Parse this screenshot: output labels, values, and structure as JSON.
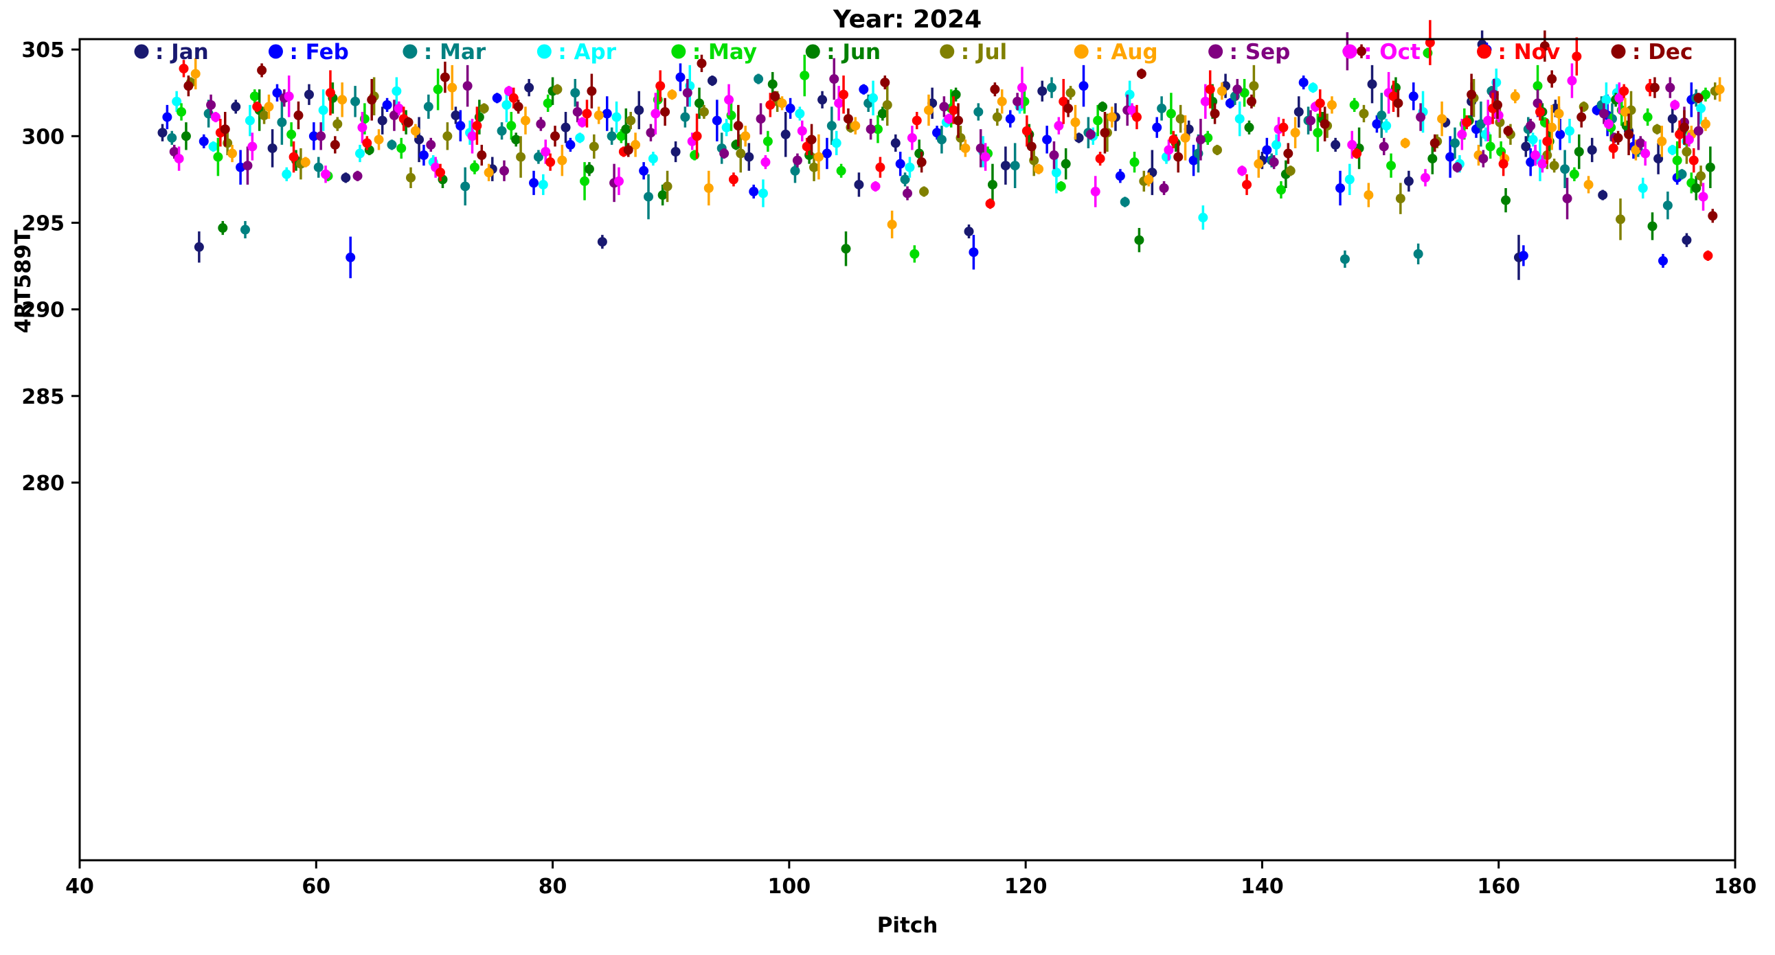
{
  "chart_data": {
    "type": "scatter",
    "title": "Year: 2024",
    "xlabel": "Pitch",
    "ylabel": "4RT589T",
    "xlim": [
      40,
      180
    ],
    "ylim": [
      258.2,
      305.6
    ],
    "xticks": [
      40,
      60,
      80,
      100,
      120,
      140,
      160,
      180
    ],
    "yticks": [
      280,
      285,
      290,
      295,
      300,
      305
    ],
    "grid": false,
    "background": "#ffffff",
    "axis_color": "#000000",
    "legend_position": "top-inline-row",
    "legend_label_prefix": ": ",
    "marker": "circle-with-vertical-errorbar",
    "x_base": [
      47.0,
      50.1,
      53.2,
      56.3,
      59.4,
      62.5,
      65.6,
      68.7,
      71.8,
      74.9,
      78.0,
      81.1,
      84.2,
      87.3,
      90.4,
      93.5,
      96.6,
      99.7,
      102.8,
      105.9,
      109.0,
      112.1,
      115.2,
      118.3,
      121.4,
      124.5,
      127.6,
      130.7,
      133.8,
      136.9,
      140.0,
      143.1,
      146.2,
      149.3,
      152.4,
      155.5,
      158.6,
      161.7,
      164.8,
      167.9,
      171.0,
      173.5,
      175.9,
      157.7,
      162.3,
      168.8,
      174.7
    ],
    "series": [
      {
        "name": "Jan",
        "color": "#191970",
        "x_offset": 0.0,
        "y": [
          300.2,
          293.6,
          301.7,
          299.3,
          302.4,
          297.6,
          300.9,
          299.8,
          301.2,
          298.1,
          302.8,
          300.5,
          293.9,
          301.5,
          299.1,
          303.2,
          298.8,
          300.1,
          302.1,
          297.2,
          299.6,
          301.9,
          294.5,
          298.3,
          302.6,
          299.9,
          301.1,
          297.9,
          300.4,
          302.9,
          298.6,
          301.4,
          299.5,
          303.0,
          297.4,
          300.8,
          305.3,
          293.0,
          301.6,
          299.2,
          300.3,
          298.7,
          294.0,
          302.0,
          299.4,
          296.6,
          301.0
        ],
        "err_cycle": [
          0.5,
          0.9,
          0.4,
          1.1,
          0.6,
          0.3,
          0.8,
          1.3,
          0.5,
          0.7
        ]
      },
      {
        "name": "Feb",
        "color": "#0000ff",
        "x_offset": 0.4,
        "y": [
          301.1,
          299.7,
          298.2,
          302.5,
          300.0,
          293.0,
          301.8,
          298.9,
          300.6,
          302.2,
          297.3,
          299.5,
          301.3,
          298.0,
          303.4,
          300.9,
          296.8,
          301.6,
          299.0,
          302.7,
          298.4,
          300.2,
          293.3,
          301.0,
          299.8,
          302.9,
          297.7,
          300.5,
          298.6,
          301.9,
          299.2,
          303.1,
          297.0,
          300.7,
          302.3,
          298.8,
          305.0,
          293.1,
          300.1,
          301.5,
          299.4,
          292.8,
          302.1,
          300.4,
          298.5,
          301.2,
          297.6
        ],
        "err_cycle": [
          0.7,
          0.4,
          1.0,
          0.5,
          0.8,
          1.2,
          0.4,
          0.6,
          0.9,
          0.3
        ]
      },
      {
        "name": "Mar",
        "color": "#008080",
        "x_offset": 0.8,
        "y": [
          299.9,
          301.3,
          294.6,
          300.8,
          298.2,
          302.0,
          299.5,
          301.7,
          297.1,
          300.3,
          298.8,
          302.5,
          300.0,
          296.5,
          301.1,
          299.3,
          303.3,
          298.0,
          300.6,
          301.9,
          297.5,
          299.8,
          301.4,
          298.3,
          302.8,
          300.2,
          296.2,
          301.6,
          299.0,
          302.3,
          298.6,
          300.9,
          292.9,
          301.2,
          293.2,
          299.6,
          302.6,
          300.4,
          298.1,
          301.8,
          299.2,
          296.0,
          302.2,
          300.7,
          298.9,
          301.0,
          297.8
        ],
        "err_cycle": [
          0.4,
          0.8,
          0.5,
          1.3,
          0.6,
          0.9,
          0.3,
          0.7,
          1.1,
          0.5
        ]
      },
      {
        "name": "Apr",
        "color": "#00ffff",
        "x_offset": 1.2,
        "y": [
          302.0,
          299.4,
          300.9,
          297.8,
          301.5,
          299.0,
          302.6,
          298.5,
          300.2,
          301.8,
          297.2,
          299.9,
          301.1,
          298.7,
          302.9,
          300.5,
          296.7,
          301.3,
          299.6,
          302.2,
          298.2,
          300.8,
          299.1,
          301.7,
          297.9,
          300.0,
          302.4,
          298.8,
          295.3,
          301.0,
          299.5,
          302.8,
          297.5,
          300.6,
          301.4,
          298.4,
          303.1,
          299.8,
          300.3,
          302.1,
          297.0,
          299.2,
          301.6,
          300.1,
          298.6,
          302.5,
          299.7
        ],
        "err_cycle": [
          0.6,
          0.3,
          0.9,
          0.4,
          1.2,
          0.5,
          0.8,
          0.4,
          0.7,
          1.0
        ]
      },
      {
        "name": "May",
        "color": "#00dd00",
        "x_offset": 1.6,
        "y": [
          301.4,
          298.8,
          302.3,
          300.1,
          297.7,
          301.0,
          299.3,
          302.7,
          298.2,
          300.6,
          301.9,
          297.4,
          300.0,
          302.1,
          298.9,
          301.2,
          299.7,
          303.5,
          298.0,
          300.4,
          293.2,
          301.6,
          299.0,
          302.0,
          297.1,
          300.9,
          298.5,
          301.3,
          299.9,
          302.5,
          296.9,
          300.2,
          301.8,
          298.3,
          304.8,
          300.7,
          299.1,
          302.9,
          297.8,
          300.5,
          301.1,
          298.6,
          302.4,
          299.4,
          300.8,
          301.5,
          297.3
        ],
        "err_cycle": [
          0.5,
          1.1,
          0.4,
          0.7,
          0.3,
          0.9,
          0.6,
          1.2,
          0.4,
          0.8
        ]
      },
      {
        "name": "Jun",
        "color": "#008000",
        "x_offset": 2.0,
        "y": [
          300.0,
          294.7,
          301.5,
          298.6,
          302.2,
          299.2,
          300.8,
          297.5,
          301.1,
          299.8,
          302.6,
          298.1,
          300.4,
          296.6,
          301.9,
          299.5,
          303.0,
          298.9,
          293.5,
          301.3,
          299.0,
          302.4,
          297.2,
          300.1,
          298.4,
          301.7,
          294.0,
          299.6,
          302.0,
          300.5,
          297.8,
          301.0,
          299.3,
          302.8,
          298.7,
          300.9,
          296.3,
          301.4,
          299.1,
          302.1,
          294.8,
          300.3,
          298.2,
          301.6,
          299.7,
          300.6,
          297.0
        ],
        "err_cycle": [
          0.8,
          0.4,
          1.2,
          0.6,
          0.9,
          0.3,
          0.7,
          0.5,
          1.0,
          0.4
        ]
      },
      {
        "name": "Jul",
        "color": "#808000",
        "x_offset": 2.4,
        "y": [
          303.1,
          299.6,
          301.2,
          298.4,
          300.7,
          302.3,
          297.6,
          300.0,
          301.6,
          298.8,
          302.7,
          299.4,
          300.9,
          297.1,
          301.4,
          299.0,
          302.0,
          298.2,
          300.5,
          301.8,
          296.8,
          299.9,
          301.1,
          298.6,
          302.5,
          300.2,
          297.4,
          301.0,
          299.2,
          302.9,
          298.0,
          300.6,
          301.3,
          296.4,
          299.7,
          302.2,
          300.1,
          298.9,
          301.7,
          295.2,
          300.4,
          299.1,
          302.6,
          300.8,
          298.3,
          301.5,
          297.7
        ],
        "err_cycle": [
          0.3,
          0.7,
          0.5,
          0.9,
          0.4,
          1.1,
          0.6,
          0.8,
          0.3,
          1.2
        ]
      },
      {
        "name": "Aug",
        "color": "#ffa500",
        "x_offset": 2.8,
        "y": [
          303.6,
          299.0,
          301.7,
          298.5,
          302.1,
          299.8,
          300.3,
          302.8,
          297.9,
          300.9,
          298.6,
          301.2,
          299.5,
          302.4,
          297.0,
          300.0,
          301.9,
          298.8,
          300.6,
          294.9,
          301.5,
          299.3,
          302.0,
          298.1,
          300.8,
          301.1,
          297.5,
          299.9,
          302.6,
          298.4,
          300.2,
          301.8,
          296.6,
          299.6,
          301.0,
          298.9,
          302.3,
          300.5,
          297.2,
          301.4,
          299.7,
          300.1,
          302.7,
          298.7,
          301.3,
          299.2,
          300.7
        ],
        "err_cycle": [
          0.9,
          0.5,
          0.7,
          0.3,
          1.0,
          0.6,
          0.4,
          1.3,
          0.5,
          0.8
        ]
      },
      {
        "name": "Sep",
        "color": "#800080",
        "x_offset": 1.0,
        "y": [
          299.1,
          301.8,
          298.3,
          302.2,
          300.0,
          297.7,
          301.2,
          299.5,
          302.9,
          298.0,
          300.7,
          301.4,
          297.3,
          300.2,
          302.5,
          299.0,
          301.0,
          298.6,
          303.3,
          300.4,
          296.7,
          301.7,
          299.3,
          302.0,
          298.9,
          300.1,
          301.5,
          297.0,
          299.8,
          302.7,
          298.5,
          300.9,
          304.9,
          299.4,
          301.1,
          298.2,
          302.4,
          300.6,
          296.4,
          301.3,
          299.6,
          302.8,
          300.3,
          298.7,
          301.9,
          299.9,
          300.8
        ],
        "err_cycle": [
          0.4,
          0.6,
          1.1,
          0.5,
          0.8,
          0.3,
          0.9,
          0.4,
          1.2,
          0.6
        ]
      },
      {
        "name": "Oct",
        "color": "#ff00ff",
        "x_offset": 1.4,
        "y": [
          298.7,
          301.1,
          299.4,
          302.3,
          297.8,
          300.5,
          301.6,
          298.2,
          300.0,
          302.6,
          299.1,
          300.8,
          297.4,
          301.3,
          299.7,
          302.1,
          298.5,
          300.3,
          301.9,
          297.1,
          299.9,
          301.0,
          298.8,
          302.8,
          300.6,
          296.8,
          301.5,
          299.2,
          302.0,
          298.0,
          300.4,
          301.7,
          299.5,
          302.5,
          297.6,
          300.1,
          301.2,
          298.9,
          303.2,
          300.7,
          299.0,
          301.8,
          296.5,
          300.9,
          298.4,
          302.2,
          299.8
        ],
        "err_cycle": [
          0.7,
          0.3,
          0.8,
          1.2,
          0.5,
          0.9,
          0.4,
          0.6,
          1.0,
          0.3
        ]
      },
      {
        "name": "Nov",
        "color": "#ff0000",
        "x_offset": 1.8,
        "y": [
          303.9,
          300.2,
          301.7,
          298.8,
          302.5,
          299.6,
          301.0,
          297.9,
          300.6,
          302.2,
          298.5,
          301.3,
          299.1,
          302.9,
          300.0,
          297.5,
          301.8,
          299.4,
          302.4,
          298.2,
          300.9,
          301.5,
          296.1,
          300.3,
          302.0,
          298.7,
          301.1,
          299.8,
          302.7,
          297.2,
          300.5,
          301.9,
          299.0,
          302.3,
          305.4,
          300.8,
          298.4,
          301.4,
          304.6,
          299.3,
          302.8,
          300.1,
          293.1,
          301.6,
          299.7,
          302.6,
          298.6
        ],
        "err_cycle": [
          0.5,
          0.8,
          0.3,
          0.9,
          1.3,
          0.4,
          0.7,
          0.5,
          1.1,
          0.6
        ]
      },
      {
        "name": "Dec",
        "color": "#8b0000",
        "x_offset": 2.2,
        "y": [
          302.9,
          300.4,
          303.8,
          301.2,
          299.5,
          302.1,
          300.8,
          303.4,
          298.9,
          301.7,
          300.0,
          302.6,
          299.2,
          301.4,
          304.2,
          300.6,
          302.3,
          299.8,
          301.0,
          303.1,
          298.5,
          300.9,
          302.7,
          299.4,
          301.6,
          300.2,
          303.6,
          298.8,
          301.3,
          302.0,
          299.0,
          300.7,
          304.9,
          301.9,
          299.6,
          302.4,
          300.3,
          305.2,
          301.1,
          299.9,
          302.8,
          300.5,
          295.4,
          301.8,
          303.3,
          300.1,
          302.2
        ],
        "err_cycle": [
          0.6,
          1.0,
          0.4,
          0.8,
          0.5,
          1.2,
          0.3,
          0.9,
          0.6,
          0.4
        ]
      }
    ]
  }
}
